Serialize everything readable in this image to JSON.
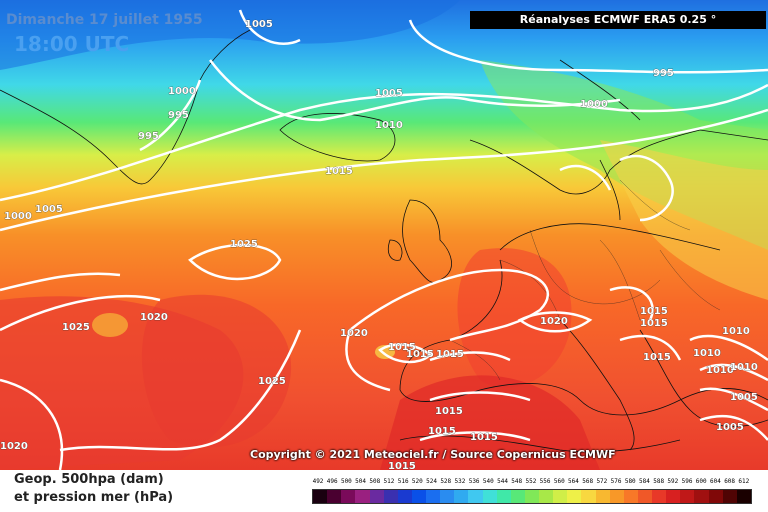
{
  "header": {
    "date": "Dimanche 17 juillet 1955",
    "time": "18:00 UTC",
    "source": "Réanalyses ECMWF ERA5 0.25 °"
  },
  "footer": {
    "copyright": "Copyright © 2021 Meteociel.fr / Source Copernicus ECMWF",
    "caption_line1": "Geop. 500hpa (dam)",
    "caption_line2": "et pression mer (hPa)"
  },
  "map": {
    "isobar_labels": [
      "1005",
      "1000",
      "995",
      "995",
      "1005",
      "1010",
      "1015",
      "1000",
      "995",
      "1000",
      "1005",
      "1025",
      "1025",
      "1020",
      "1020",
      "1025",
      "1020",
      "1015",
      "1015",
      "1015",
      "1015",
      "1015",
      "1015",
      "1015",
      "1020",
      "1015",
      "1015",
      "1015",
      "1010",
      "1010",
      "1010",
      "1010",
      "1005",
      "1005",
      "1020"
    ]
  },
  "legend": {
    "scale_values": [
      "492",
      "496",
      "500",
      "504",
      "508",
      "512",
      "516",
      "520",
      "524",
      "528",
      "532",
      "536",
      "540",
      "544",
      "548",
      "552",
      "556",
      "560",
      "564",
      "568",
      "572",
      "576",
      "580",
      "584",
      "588",
      "592",
      "596",
      "600",
      "604",
      "608",
      "612"
    ],
    "scale_colors": [
      "#1a0010",
      "#4a0030",
      "#7a0a5a",
      "#9a2080",
      "#6a2aa0",
      "#3a30b0",
      "#1a3ad0",
      "#0a50e8",
      "#1a6ef0",
      "#2a8cf0",
      "#30aaf0",
      "#40c8f0",
      "#40e0d8",
      "#40e8a8",
      "#58e878",
      "#80e858",
      "#a8e848",
      "#d0ee48",
      "#eef048",
      "#f8d840",
      "#f8b830",
      "#f89828",
      "#f87828",
      "#f05828",
      "#e83828",
      "#d82020",
      "#c01818",
      "#a01010",
      "#800808",
      "#500404",
      "#1a0000"
    ]
  }
}
